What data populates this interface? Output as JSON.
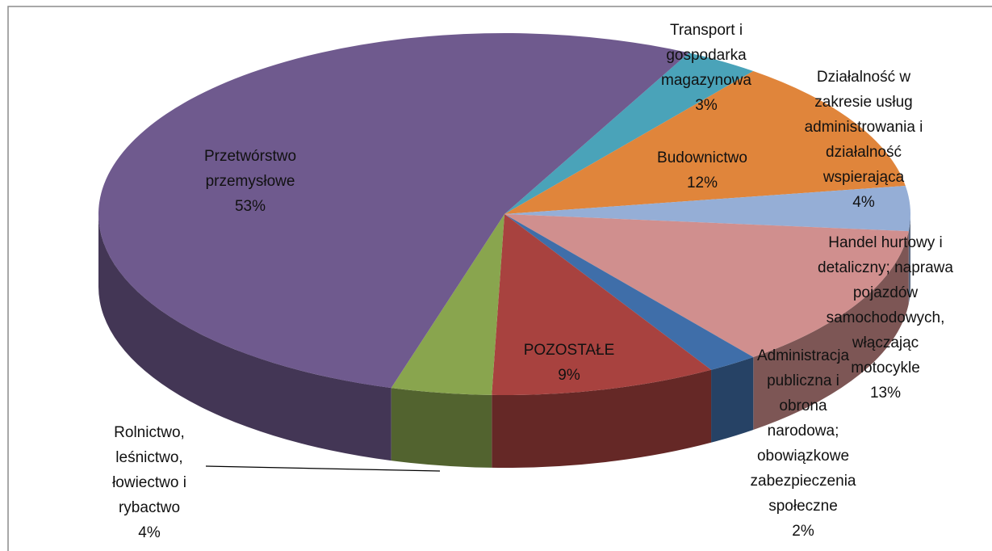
{
  "chart_data": {
    "type": "pie",
    "categories": [
      "Transport i gospodarka magazynowa",
      "Budownictwo",
      "Działalność w zakresie usług administrowania i działalność wspierająca",
      "Handel hurtowy i detaliczny; naprawa pojazdów samochodowych, włączając motocykle",
      "Administracja publiczna i obrona narodowa; obowiązkowe zabezpieczenia społeczne",
      "POZOSTAŁE",
      "Rolnictwo, leśnictwo, łowiectwo i rybactwo",
      "Przetwórstwo przemysłowe"
    ],
    "values": [
      3,
      12,
      4,
      13,
      2,
      9,
      4,
      53
    ],
    "value_labels": [
      "3%",
      "12%",
      "4%",
      "13%",
      "2%",
      "9%",
      "4%",
      "53%"
    ],
    "colors": [
      "#4aa3b9",
      "#e0853b",
      "#95aed6",
      "#d08f8e",
      "#3f6ea9",
      "#a8423f",
      "#89a54e",
      "#6f5a8e"
    ]
  }
}
